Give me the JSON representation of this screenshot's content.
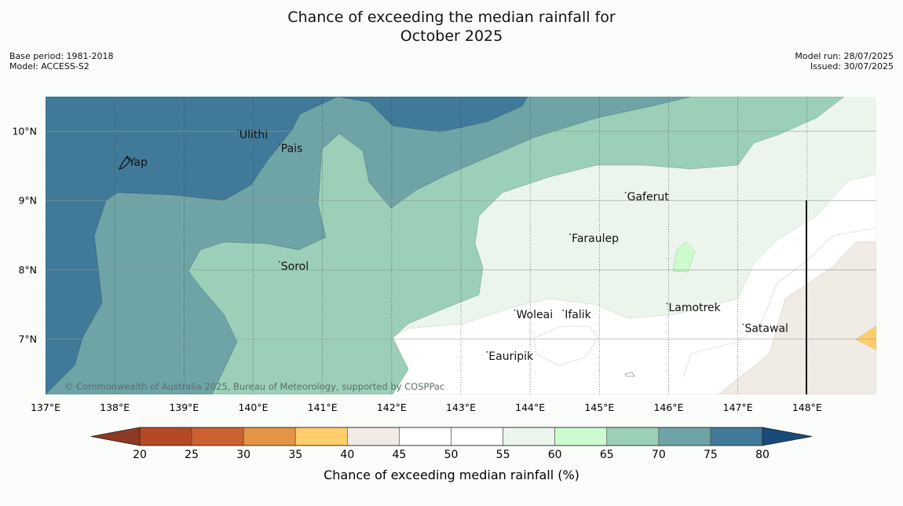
{
  "header": {
    "title_line1": "Chance of exceeding the median rainfall for",
    "title_line2": "October 2025",
    "base_period": "Base period: 1981-2018",
    "model": "Model: ACCESS-S2",
    "model_run": "Model run: 28/07/2025",
    "issued": "Issued: 30/07/2025"
  },
  "map": {
    "lon_range": [
      137,
      149
    ],
    "lat_range": [
      6.2,
      10.5
    ],
    "lon_ticks": [
      137,
      138,
      139,
      140,
      141,
      142,
      143,
      144,
      145,
      146,
      147,
      148
    ],
    "lon_labels": [
      "137°E",
      "138°E",
      "139°E",
      "140°E",
      "141°E",
      "142°E",
      "143°E",
      "144°E",
      "145°E",
      "146°E",
      "147°E",
      "148°E"
    ],
    "lat_ticks": [
      10,
      9,
      8,
      7
    ],
    "lat_labels": [
      "10°N",
      "9°N",
      "8°N",
      "7°N"
    ],
    "places": [
      {
        "name": "Ulithi",
        "lon": 139.8,
        "lat": 9.9
      },
      {
        "name": "Pais",
        "lon": 140.4,
        "lat": 9.7
      },
      {
        "name": "Yap",
        "lon": 138.2,
        "lat": 9.5
      },
      {
        "name": "Gaferut",
        "lon": 145.4,
        "lat": 9.0
      },
      {
        "name": "Faraulep",
        "lon": 144.6,
        "lat": 8.4
      },
      {
        "name": "Sorol",
        "lon": 140.4,
        "lat": 8.0
      },
      {
        "name": "Lamotrek",
        "lon": 146.0,
        "lat": 7.4
      },
      {
        "name": "Woleai",
        "lon": 143.8,
        "lat": 7.3
      },
      {
        "name": "Ifalik",
        "lon": 144.5,
        "lat": 7.3
      },
      {
        "name": "Satawal",
        "lon": 147.1,
        "lat": 7.1
      },
      {
        "name": "Eauripik",
        "lon": 143.4,
        "lat": 6.7
      }
    ],
    "attribution": "© Commonwealth of Australia 2025, Bureau of Meteorology, supported by COSPPac"
  },
  "colorbar": {
    "label": "Chance of exceeding median rainfall (%)",
    "ticks": [
      "20",
      "25",
      "30",
      "35",
      "40",
      "45",
      "50",
      "55",
      "60",
      "65",
      "70",
      "75",
      "80"
    ],
    "colors": [
      "#b44a25",
      "#cd6130",
      "#e39444",
      "#ffcd6a",
      "#f1ebe6",
      "#ffffff",
      "#ffffff",
      "#ecf5ec",
      "#ccfcce",
      "#9ccfb8",
      "#6ea4a6",
      "#417a99"
    ],
    "under_color": "#8e3924",
    "over_color": "#184a7a"
  },
  "colors": {
    "c80": "#417a99",
    "c75": "#6ea4a6",
    "c70": "#9ccfb8",
    "c65": "#ccfcce",
    "c60": "#ecf5ec",
    "c50": "#ffffff",
    "c45": "#f1ebe6",
    "c40": "#ffcd6a"
  }
}
